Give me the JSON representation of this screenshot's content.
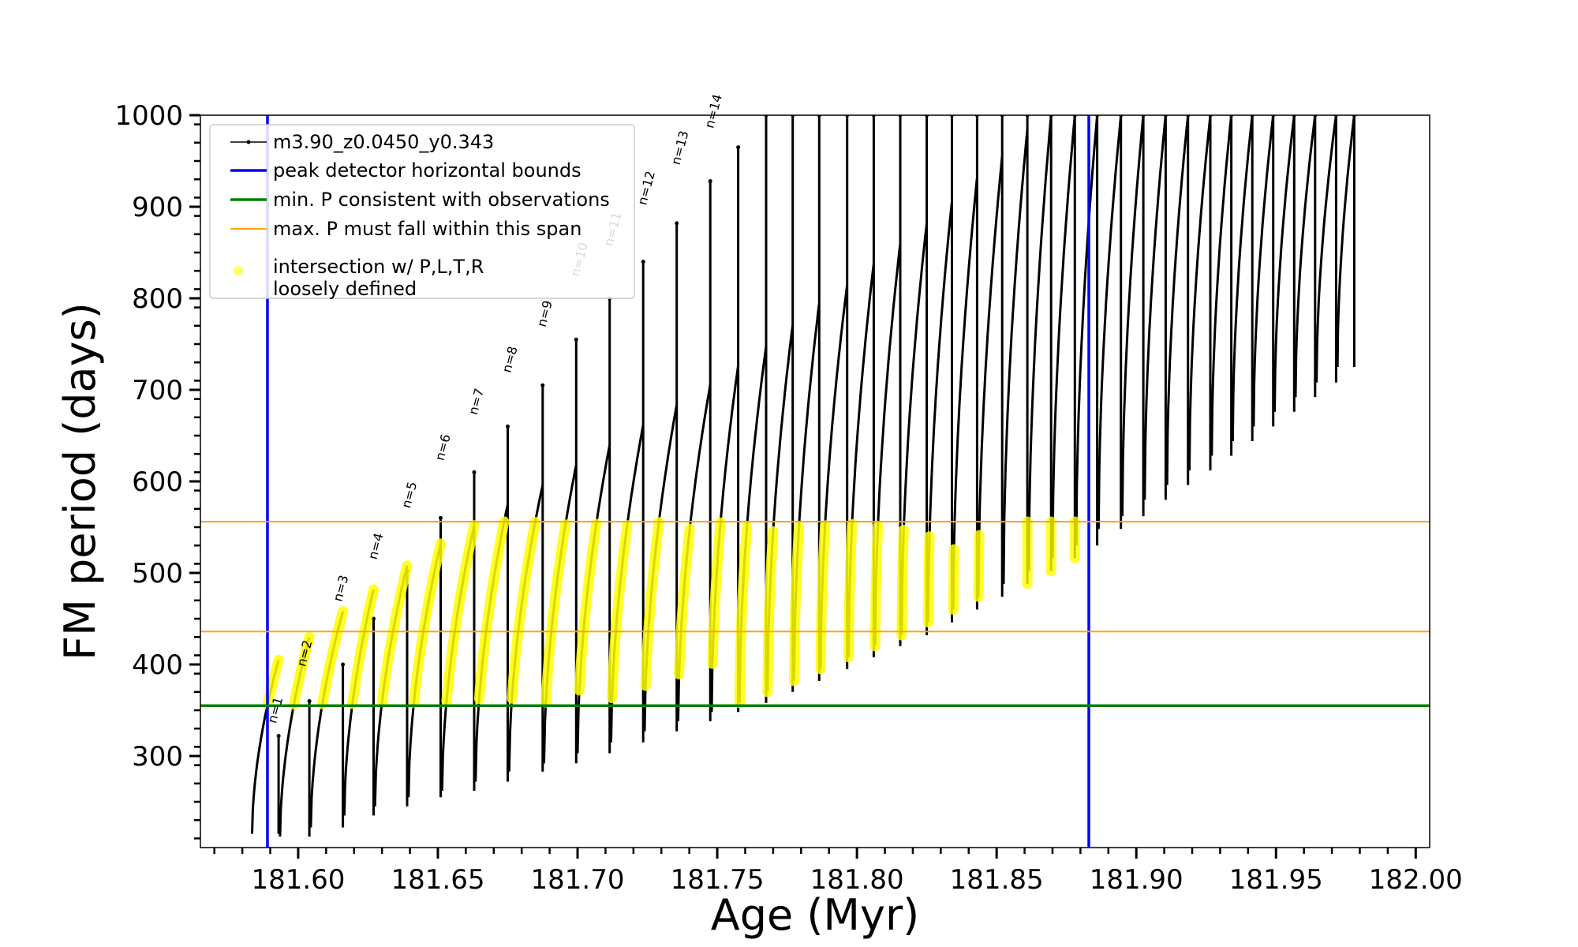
{
  "chart_data": {
    "type": "line",
    "title": "",
    "xlabel": "Age (Myr)",
    "ylabel": "FM period (days)",
    "xlim": [
      181.565,
      182.005
    ],
    "ylim": [
      200,
      1000
    ],
    "x_ticks": [
      "181.60",
      "181.65",
      "181.70",
      "181.75",
      "181.80",
      "181.85",
      "181.90",
      "181.95",
      "182.00"
    ],
    "x_tick_values": [
      181.6,
      181.65,
      181.7,
      181.75,
      181.8,
      181.85,
      181.9,
      181.95,
      182.0
    ],
    "y_ticks": [
      "300",
      "400",
      "500",
      "600",
      "700",
      "800",
      "900",
      "1000"
    ],
    "y_tick_values": [
      300,
      400,
      500,
      600,
      700,
      800,
      900,
      1000
    ],
    "legend_placement": "upper-left",
    "legend": [
      {
        "label": "m3.90_z0.0450_y0.343",
        "kind": "line-marker",
        "color": "#000000"
      },
      {
        "label": "peak detector horizontal bounds",
        "kind": "line",
        "color": "#0000ff"
      },
      {
        "label": "min. P consistent with observations",
        "kind": "line",
        "color": "#008000"
      },
      {
        "label": "max. P must fall within this span",
        "kind": "line",
        "color": "#ffa500"
      },
      {
        "label": "intersection w/ P,L,T,R",
        "label2": "loosely defined",
        "kind": "marker",
        "color": "#ffff00"
      }
    ],
    "vertical_lines": [
      {
        "name": "peak detector horizontal bounds",
        "x": 181.589,
        "color": "#0000ff"
      },
      {
        "name": "peak detector horizontal bounds",
        "x": 181.883,
        "color": "#0000ff"
      }
    ],
    "horizontal_lines": [
      {
        "name": "min. P consistent with observations",
        "y": 355,
        "color": "#008000"
      },
      {
        "name": "max. P must fall within this span",
        "y": 436,
        "color": "#ffa500"
      },
      {
        "name": "max. P must fall within this span",
        "y": 556,
        "color": "#ffa500"
      }
    ],
    "pulse_labels": [
      {
        "text": "n=1",
        "x": 181.592,
        "y": 335
      },
      {
        "text": "n=2",
        "x": 181.6025,
        "y": 397
      },
      {
        "text": "n=3",
        "x": 181.6155,
        "y": 468
      },
      {
        "text": "n=4",
        "x": 181.628,
        "y": 514
      },
      {
        "text": "n=5",
        "x": 181.64,
        "y": 570
      },
      {
        "text": "n=6",
        "x": 181.652,
        "y": 622
      },
      {
        "text": "n=7",
        "x": 181.664,
        "y": 672
      },
      {
        "text": "n=8",
        "x": 181.676,
        "y": 718
      },
      {
        "text": "n=9",
        "x": 181.6885,
        "y": 768
      },
      {
        "text": "n=10",
        "x": 181.7005,
        "y": 823
      },
      {
        "text": "n=11",
        "x": 181.7125,
        "y": 856
      },
      {
        "text": "n=12",
        "x": 181.7245,
        "y": 901
      },
      {
        "text": "n=13",
        "x": 181.7365,
        "y": 945
      },
      {
        "text": "n=14",
        "x": 181.7485,
        "y": 985
      }
    ],
    "series": [
      {
        "name": "m3.90_z0.0450_y0.343",
        "pulses": [
          {
            "x0": 181.5835,
            "x1": 181.593,
            "base": 215,
            "peak": 405,
            "spike": 322
          },
          {
            "x0": 181.5935,
            "x1": 181.604,
            "base": 212,
            "peak": 430,
            "spike": 360
          },
          {
            "x0": 181.6045,
            "x1": 181.616,
            "base": 222,
            "peak": 458,
            "spike": 400
          },
          {
            "x0": 181.6165,
            "x1": 181.627,
            "base": 235,
            "peak": 482,
            "spike": 450
          },
          {
            "x0": 181.6275,
            "x1": 181.639,
            "base": 245,
            "peak": 508,
            "spike": 502
          },
          {
            "x0": 181.6395,
            "x1": 181.651,
            "base": 255,
            "peak": 532,
            "spike": 560
          },
          {
            "x0": 181.6515,
            "x1": 181.663,
            "base": 262,
            "peak": 552,
            "spike": 610
          },
          {
            "x0": 181.6635,
            "x1": 181.675,
            "base": 272,
            "peak": 575,
            "spike": 660
          },
          {
            "x0": 181.6755,
            "x1": 181.6875,
            "base": 283,
            "peak": 596,
            "spike": 705
          },
          {
            "x0": 181.688,
            "x1": 181.6995,
            "base": 292,
            "peak": 618,
            "spike": 755
          },
          {
            "x0": 181.7,
            "x1": 181.7115,
            "base": 303,
            "peak": 640,
            "spike": 800
          },
          {
            "x0": 181.712,
            "x1": 181.7235,
            "base": 315,
            "peak": 662,
            "spike": 840
          },
          {
            "x0": 181.724,
            "x1": 181.7355,
            "base": 327,
            "peak": 684,
            "spike": 882
          },
          {
            "x0": 181.736,
            "x1": 181.7475,
            "base": 338,
            "peak": 706,
            "spike": 928
          },
          {
            "x0": 181.748,
            "x1": 181.7575,
            "base": 348,
            "peak": 727,
            "spike": 965
          },
          {
            "x0": 181.758,
            "x1": 181.7675,
            "base": 358,
            "peak": 748,
            "spike": 1000
          },
          {
            "x0": 181.768,
            "x1": 181.777,
            "base": 370,
            "peak": 771,
            "spike": 1000
          },
          {
            "x0": 181.7775,
            "x1": 181.7865,
            "base": 382,
            "peak": 795,
            "spike": 1000
          },
          {
            "x0": 181.787,
            "x1": 181.7965,
            "base": 395,
            "peak": 815,
            "spike": 1000
          },
          {
            "x0": 181.797,
            "x1": 181.806,
            "base": 408,
            "peak": 838,
            "spike": 1000
          },
          {
            "x0": 181.8065,
            "x1": 181.8155,
            "base": 420,
            "peak": 860,
            "spike": 1000
          },
          {
            "x0": 181.816,
            "x1": 181.825,
            "base": 432,
            "peak": 883,
            "spike": 1000
          },
          {
            "x0": 181.8255,
            "x1": 181.834,
            "base": 446,
            "peak": 906,
            "spike": 1000
          },
          {
            "x0": 181.8345,
            "x1": 181.843,
            "base": 460,
            "peak": 932,
            "spike": 1000
          },
          {
            "x0": 181.8435,
            "x1": 181.852,
            "base": 474,
            "peak": 956,
            "spike": 1000
          },
          {
            "x0": 181.8525,
            "x1": 181.861,
            "base": 488,
            "peak": 985,
            "spike": 1000
          },
          {
            "x0": 181.8615,
            "x1": 181.8695,
            "base": 502,
            "peak": 1000,
            "spike": 1000
          },
          {
            "x0": 181.87,
            "x1": 181.878,
            "base": 516,
            "peak": 1000,
            "spike": 1000
          },
          {
            "x0": 181.8785,
            "x1": 181.886,
            "base": 530,
            "peak": 1000,
            "spike": 1000
          },
          {
            "x0": 181.8865,
            "x1": 181.8945,
            "base": 548,
            "peak": 1000,
            "spike": 1000
          },
          {
            "x0": 181.895,
            "x1": 181.9025,
            "base": 562,
            "peak": 1000,
            "spike": 1000
          },
          {
            "x0": 181.903,
            "x1": 181.9105,
            "base": 580,
            "peak": 1000,
            "spike": 1000
          },
          {
            "x0": 181.911,
            "x1": 181.9185,
            "base": 596,
            "peak": 1000,
            "spike": 1000
          },
          {
            "x0": 181.919,
            "x1": 181.9265,
            "base": 612,
            "peak": 1000,
            "spike": 1000
          },
          {
            "x0": 181.927,
            "x1": 181.934,
            "base": 628,
            "peak": 1000,
            "spike": 1000
          },
          {
            "x0": 181.9345,
            "x1": 181.9415,
            "base": 644,
            "peak": 1000,
            "spike": 1000
          },
          {
            "x0": 181.942,
            "x1": 181.949,
            "base": 660,
            "peak": 1000,
            "spike": 1000
          },
          {
            "x0": 181.9495,
            "x1": 181.9565,
            "base": 676,
            "peak": 1000,
            "spike": 1000
          },
          {
            "x0": 181.957,
            "x1": 181.964,
            "base": 692,
            "peak": 1000,
            "spike": 1000
          },
          {
            "x0": 181.9645,
            "x1": 181.9715,
            "base": 708,
            "peak": 1000,
            "spike": 1000
          },
          {
            "x0": 181.972,
            "x1": 181.978,
            "base": 725,
            "peak": 1000,
            "spike": 1000
          }
        ]
      }
    ]
  }
}
